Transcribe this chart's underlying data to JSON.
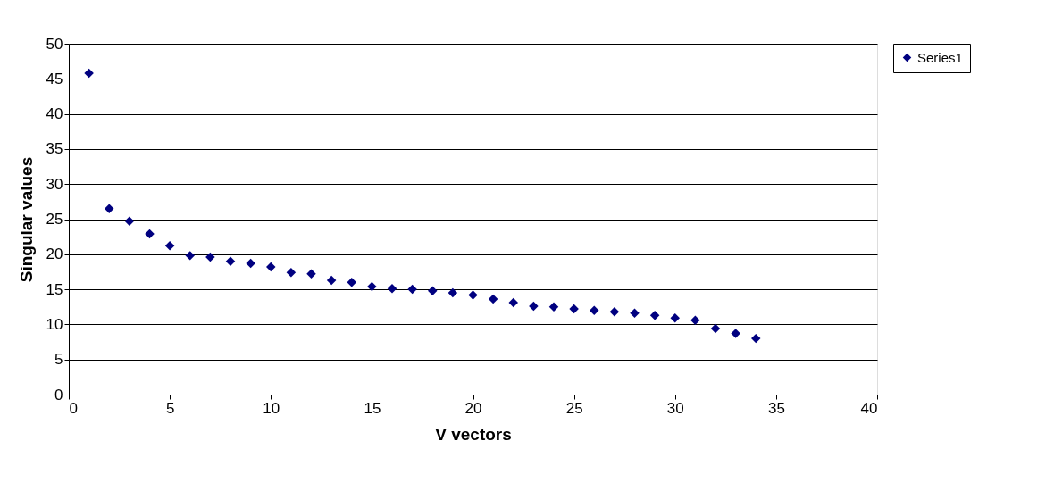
{
  "chart_data": {
    "type": "scatter",
    "xlabel": "V vectors",
    "ylabel": "Singular values",
    "x": [
      1,
      2,
      3,
      4,
      5,
      6,
      7,
      8,
      9,
      10,
      11,
      12,
      13,
      14,
      15,
      16,
      17,
      18,
      19,
      20,
      21,
      22,
      23,
      24,
      25,
      26,
      27,
      28,
      29,
      30,
      31,
      32,
      33,
      34
    ],
    "series": [
      {
        "name": "Series1",
        "color": "#000080",
        "values": [
          45.8,
          26.5,
          24.7,
          22.9,
          21.2,
          19.8,
          19.6,
          19.0,
          18.7,
          18.2,
          17.4,
          17.2,
          16.3,
          16.0,
          15.4,
          15.1,
          15.0,
          14.8,
          14.5,
          14.2,
          13.6,
          13.1,
          12.6,
          12.5,
          12.2,
          12.0,
          11.8,
          11.6,
          11.3,
          10.9,
          10.6,
          9.4,
          8.7,
          8.0
        ]
      }
    ],
    "xlim": [
      0,
      40
    ],
    "xticks": [
      0,
      5,
      10,
      15,
      20,
      25,
      30,
      35,
      40
    ],
    "ylim": [
      0,
      50
    ],
    "yticks": [
      0,
      5,
      10,
      15,
      20,
      25,
      30,
      35,
      40,
      45,
      50
    ],
    "grid": "y",
    "legend": "right",
    "marker": "diamond"
  }
}
